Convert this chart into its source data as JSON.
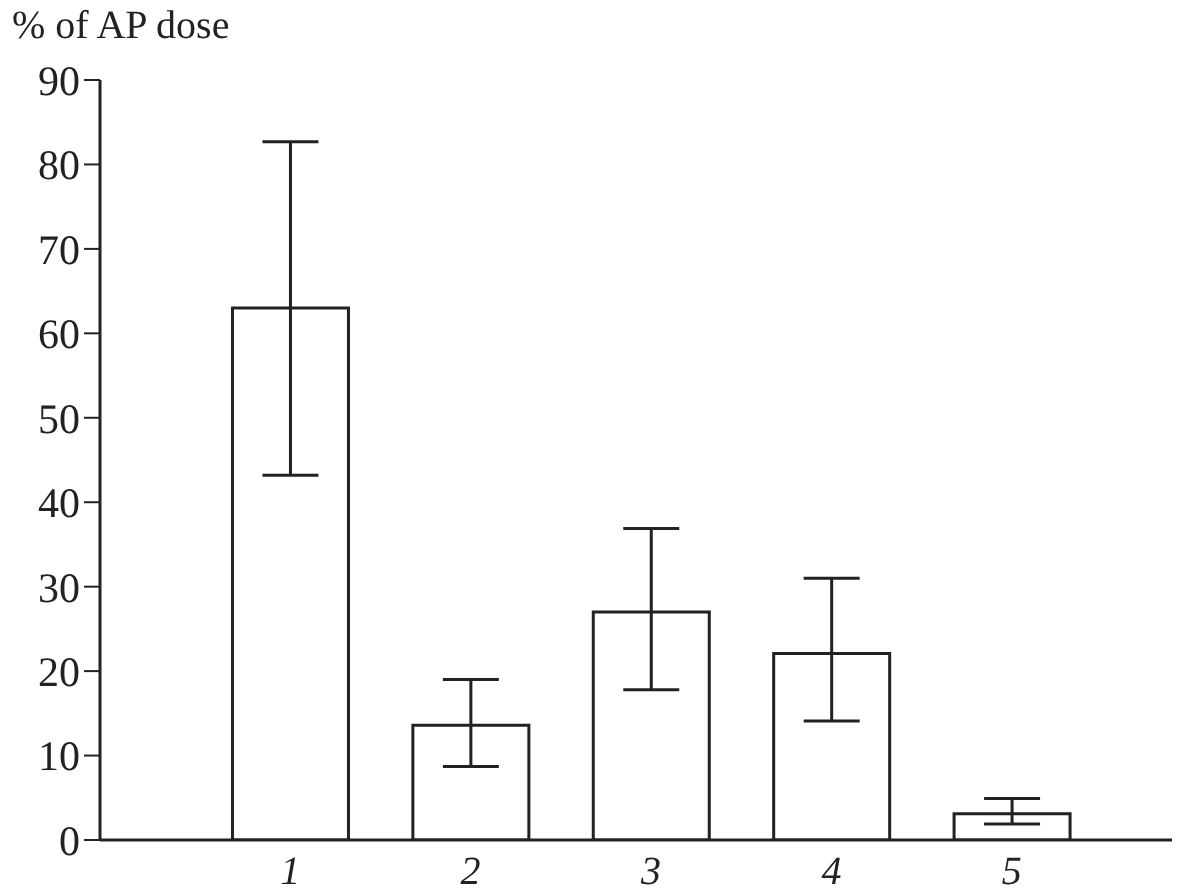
{
  "chart_data": {
    "type": "bar",
    "ylabel": "% of AP dose",
    "categories": [
      "1",
      "2",
      "3",
      "4",
      "5"
    ],
    "values": [
      63,
      13.6,
      27,
      22.1,
      3.1
    ],
    "errors": [
      [
        43.2,
        82.7
      ],
      [
        8.7,
        19
      ],
      [
        17.8,
        36.9
      ],
      [
        14.1,
        31
      ],
      [
        1.9,
        4.9
      ]
    ],
    "color": "#ffffff",
    "ylim": [
      0,
      90
    ],
    "yticks": [
      0,
      10,
      20,
      30,
      40,
      50,
      60,
      70,
      80,
      90
    ],
    "grid": false
  }
}
